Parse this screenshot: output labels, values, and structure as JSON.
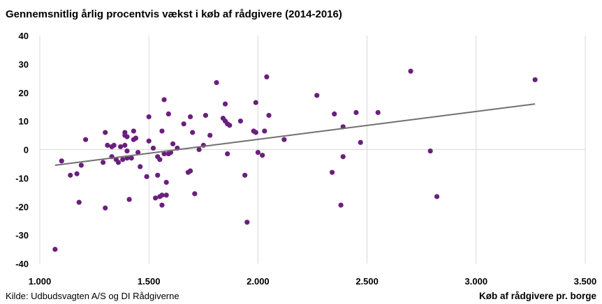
{
  "chart_data": {
    "type": "scatter",
    "title": "Gennemsnitlig årlig procentvis vækst i køb af rådgivere (2014-2016)",
    "xlabel": "Køb af rådgivere pr. borge",
    "ylabel": "",
    "source": "Kilde: Udbudsvagten A/S og DI Rådgiverne",
    "xlim": [
      1.0,
      3.5
    ],
    "ylim": [
      -40,
      40
    ],
    "x_ticks": [
      1.0,
      1.5,
      2.0,
      2.5,
      3.0,
      3.5
    ],
    "x_tick_labels": [
      "1.000",
      "1.500",
      "2.000",
      "2.500",
      "3.000",
      "3.500"
    ],
    "y_ticks": [
      40,
      30,
      20,
      10,
      0,
      -10,
      -20,
      -30,
      -40
    ],
    "y_tick_labels": [
      "40",
      "30",
      "20",
      "10",
      "0",
      "-10",
      "-20",
      "-30",
      "-40"
    ],
    "grid": {
      "vertical": true,
      "horizontal": false
    },
    "marker_color": "#6b1f7c",
    "trendline": {
      "color": "#707070",
      "x": [
        1.07,
        3.27
      ],
      "y": [
        -5.5,
        16.0
      ]
    },
    "series": [
      {
        "points": [
          [
            1.07,
            -35.0
          ],
          [
            1.1,
            -4.0
          ],
          [
            1.14,
            -9.0
          ],
          [
            1.17,
            -8.5
          ],
          [
            1.18,
            -18.5
          ],
          [
            1.19,
            -5.5
          ],
          [
            1.21,
            3.5
          ],
          [
            1.29,
            -4.5
          ],
          [
            1.3,
            6.0
          ],
          [
            1.31,
            1.5
          ],
          [
            1.3,
            -20.5
          ],
          [
            1.33,
            1.0
          ],
          [
            1.33,
            -2.5
          ],
          [
            1.34,
            1.5
          ],
          [
            1.35,
            -3.5
          ],
          [
            1.36,
            -4.5
          ],
          [
            1.37,
            1.0
          ],
          [
            1.38,
            -3.5
          ],
          [
            1.39,
            6.0
          ],
          [
            1.39,
            5.0
          ],
          [
            1.39,
            1.5
          ],
          [
            1.4,
            4.5
          ],
          [
            1.4,
            -3.0
          ],
          [
            1.4,
            -0.5
          ],
          [
            1.41,
            -17.5
          ],
          [
            1.42,
            -3.0
          ],
          [
            1.43,
            6.5
          ],
          [
            1.43,
            3.5
          ],
          [
            1.44,
            4.0
          ],
          [
            1.45,
            -1.0
          ],
          [
            1.46,
            -6.0
          ],
          [
            1.49,
            -9.5
          ],
          [
            1.5,
            11.5
          ],
          [
            1.5,
            3.0
          ],
          [
            1.52,
            0.5
          ],
          [
            1.53,
            -17.0
          ],
          [
            1.54,
            -9.0
          ],
          [
            1.54,
            -2.5
          ],
          [
            1.55,
            -3.5
          ],
          [
            1.55,
            -16.5
          ],
          [
            1.56,
            -16.0
          ],
          [
            1.56,
            6.5
          ],
          [
            1.57,
            17.5
          ],
          [
            1.56,
            -19.5
          ],
          [
            1.57,
            -1.5
          ],
          [
            1.58,
            -16.0
          ],
          [
            1.58,
            -11.5
          ],
          [
            1.59,
            12.5
          ],
          [
            1.59,
            -1.5
          ],
          [
            1.6,
            -1.0
          ],
          [
            1.61,
            2.0
          ],
          [
            1.63,
            0.5
          ],
          [
            1.66,
            9.0
          ],
          [
            1.68,
            -8.0
          ],
          [
            1.69,
            11.5
          ],
          [
            1.69,
            -7.5
          ],
          [
            1.7,
            6.0
          ],
          [
            1.71,
            -15.5
          ],
          [
            1.73,
            0.0
          ],
          [
            1.75,
            1.5
          ],
          [
            1.76,
            12.0
          ],
          [
            1.78,
            5.0
          ],
          [
            1.81,
            23.5
          ],
          [
            1.84,
            11.0
          ],
          [
            1.85,
            10.0
          ],
          [
            1.85,
            16.0
          ],
          [
            1.86,
            9.0
          ],
          [
            1.86,
            -1.5
          ],
          [
            1.87,
            8.5
          ],
          [
            1.92,
            10.0
          ],
          [
            1.94,
            -9.0
          ],
          [
            1.95,
            -25.5
          ],
          [
            1.98,
            6.5
          ],
          [
            1.99,
            6.0
          ],
          [
            1.99,
            16.5
          ],
          [
            2.0,
            -1.0
          ],
          [
            2.02,
            -2.0
          ],
          [
            2.03,
            6.5
          ],
          [
            2.04,
            25.5
          ],
          [
            2.05,
            12.0
          ],
          [
            2.12,
            3.5
          ],
          [
            2.27,
            19.0
          ],
          [
            2.34,
            -8.0
          ],
          [
            2.35,
            12.5
          ],
          [
            2.38,
            -19.5
          ],
          [
            2.39,
            8.0
          ],
          [
            2.39,
            -2.5
          ],
          [
            2.45,
            13.0
          ],
          [
            2.47,
            2.5
          ],
          [
            2.55,
            13.0
          ],
          [
            2.7,
            27.5
          ],
          [
            2.79,
            -0.5
          ],
          [
            2.82,
            -16.5
          ],
          [
            3.27,
            24.5
          ]
        ]
      }
    ]
  }
}
